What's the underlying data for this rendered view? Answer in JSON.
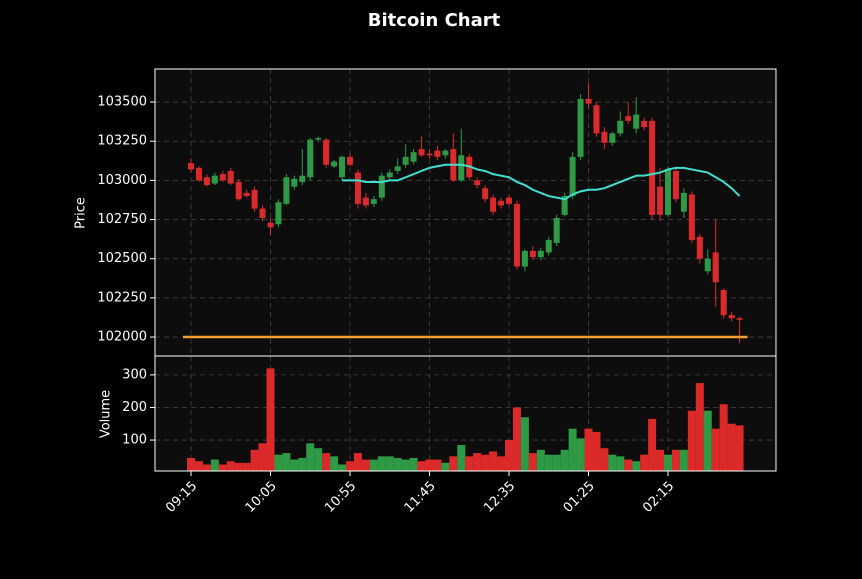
{
  "chart_data": [
    {
      "type": "candlestick",
      "title": "Bitcoin Chart",
      "ylabel": "Price",
      "categories": [
        "09:15",
        null,
        null,
        null,
        null,
        null,
        null,
        null,
        null,
        null,
        "10:05",
        null,
        null,
        null,
        null,
        null,
        null,
        null,
        null,
        null,
        "10:55",
        null,
        null,
        null,
        null,
        null,
        null,
        null,
        null,
        null,
        "11:45",
        null,
        null,
        null,
        null,
        null,
        null,
        null,
        null,
        null,
        "12:35",
        null,
        null,
        null,
        null,
        null,
        null,
        null,
        null,
        null,
        "01:25",
        null,
        null,
        null,
        null,
        null,
        null,
        null,
        null,
        null,
        "02:15",
        null,
        null,
        null,
        null,
        null,
        null,
        null,
        null,
        null
      ],
      "open": [
        103110,
        103080,
        103020,
        102980,
        103040,
        103060,
        102990,
        102920,
        102940,
        102820,
        102730,
        102720,
        102850,
        102960,
        102990,
        103020,
        103260,
        103260,
        103090,
        103020,
        103150,
        103050,
        102890,
        102850,
        102890,
        103020,
        103060,
        103100,
        103120,
        103200,
        103170,
        103190,
        103160,
        103200,
        103000,
        103150,
        103000,
        102950,
        102890,
        102870,
        102890,
        102850,
        102450,
        102550,
        102510,
        102540,
        102600,
        102780,
        102900,
        103150,
        103520,
        103480,
        103310,
        103240,
        103300,
        103410,
        103330,
        103380,
        103380,
        102960,
        102780,
        103060,
        102800,
        102910,
        102640,
        102420,
        102540,
        102300,
        102140,
        102120
      ],
      "high": [
        103140,
        103090,
        103040,
        103050,
        103060,
        103080,
        103010,
        102940,
        102960,
        102840,
        102760,
        102880,
        103040,
        103030,
        103200,
        103270,
        103280,
        103270,
        103130,
        103160,
        103170,
        103070,
        102920,
        102900,
        103050,
        103070,
        103140,
        103230,
        103200,
        103280,
        103200,
        103220,
        103200,
        103300,
        103330,
        103170,
        103020,
        102970,
        102910,
        102890,
        102910,
        102870,
        102560,
        102580,
        102570,
        102640,
        102780,
        102920,
        103180,
        103550,
        103620,
        103500,
        103340,
        103310,
        103440,
        103500,
        103530,
        103400,
        103400,
        103080,
        103090,
        103080,
        102950,
        102930,
        102660,
        102560,
        102750,
        102310,
        102160,
        102130
      ],
      "low": [
        103050,
        102990,
        102960,
        102970,
        102990,
        102970,
        102870,
        102890,
        102800,
        102740,
        102650,
        102700,
        102840,
        102940,
        102970,
        103000,
        103250,
        103080,
        103080,
        103000,
        103090,
        102820,
        102820,
        102830,
        102870,
        103000,
        103040,
        103080,
        103100,
        103150,
        103140,
        103130,
        103140,
        102990,
        102990,
        103000,
        102950,
        102860,
        102780,
        102820,
        102840,
        102430,
        102420,
        102490,
        102490,
        102520,
        102580,
        102770,
        102880,
        103130,
        103460,
        103280,
        103200,
        103220,
        103280,
        103360,
        103300,
        103320,
        102750,
        102740,
        102770,
        102860,
        102760,
        102600,
        102470,
        102400,
        102190,
        102120,
        102100,
        101960
      ],
      "close": [
        103070,
        103000,
        102970,
        103030,
        103000,
        102980,
        102880,
        102900,
        102820,
        102760,
        102700,
        102860,
        103020,
        103010,
        103030,
        103260,
        103270,
        103100,
        103120,
        103150,
        103100,
        102850,
        102840,
        102880,
        103030,
        103050,
        103090,
        103150,
        103180,
        103160,
        103160,
        103150,
        103190,
        103000,
        103160,
        103020,
        102970,
        102880,
        102800,
        102840,
        102850,
        102450,
        102550,
        102510,
        102550,
        102620,
        102760,
        102900,
        103150,
        103520,
        103490,
        103300,
        103240,
        103300,
        103380,
        103380,
        103420,
        103340,
        102780,
        102780,
        103070,
        102880,
        102920,
        102620,
        102500,
        102500,
        102350,
        102140,
        102120,
        102110
      ],
      "up_color": "#2e9a46",
      "down_color": "#dc2a2a",
      "ma": {
        "color": "#40e0d0",
        "values": [
          null,
          null,
          null,
          null,
          null,
          null,
          null,
          null,
          null,
          null,
          null,
          null,
          null,
          null,
          null,
          null,
          null,
          null,
          null,
          103000,
          103000,
          103000,
          102990,
          102990,
          102990,
          103000,
          103000,
          103020,
          103040,
          103060,
          103080,
          103090,
          103100,
          103100,
          103100,
          103090,
          103070,
          103060,
          103040,
          103030,
          103020,
          102990,
          102970,
          102940,
          102920,
          102900,
          102890,
          102880,
          102910,
          102930,
          102940,
          102940,
          102950,
          102970,
          102990,
          103010,
          103030,
          103030,
          103040,
          103050,
          103070,
          103080,
          103080,
          103070,
          103060,
          103050,
          103020,
          102990,
          102950,
          102900
        ]
      },
      "hline": {
        "value": 102000,
        "color": "#f5a030"
      },
      "ylim": [
        101879,
        103711
      ],
      "yticks": [
        102000,
        102250,
        102500,
        102750,
        103000,
        103250,
        103500
      ],
      "grid": true
    },
    {
      "type": "bar",
      "ylabel": "Volume",
      "values": [
        45,
        35,
        25,
        40,
        25,
        35,
        30,
        30,
        70,
        90,
        320,
        55,
        60,
        40,
        45,
        90,
        75,
        60,
        50,
        25,
        35,
        60,
        40,
        40,
        50,
        50,
        45,
        40,
        45,
        35,
        40,
        40,
        30,
        50,
        85,
        50,
        60,
        55,
        65,
        50,
        100,
        200,
        170,
        60,
        70,
        55,
        55,
        70,
        135,
        105,
        135,
        125,
        75,
        55,
        50,
        40,
        35,
        55,
        165,
        70,
        55,
        70,
        70,
        190,
        275,
        190,
        135,
        210,
        150,
        145
      ],
      "ylim": [
        5,
        358
      ],
      "yticks": [
        100,
        200,
        300
      ],
      "grid": true
    }
  ]
}
